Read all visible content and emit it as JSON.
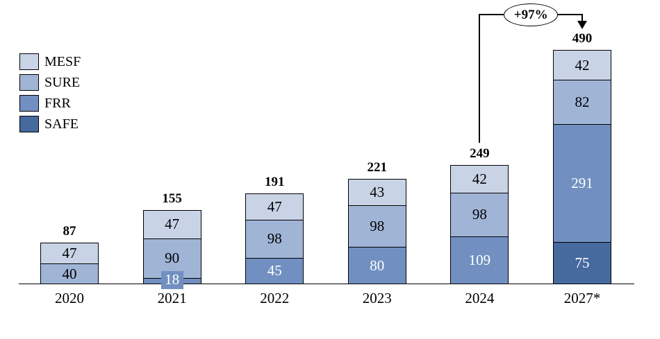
{
  "chart_data": {
    "type": "bar",
    "stacked": true,
    "title": "",
    "xlabel": "",
    "ylabel": "",
    "grid": false,
    "legend_position": "top-left",
    "categories": [
      "2020",
      "2021",
      "2022",
      "2023",
      "2024",
      "2027*"
    ],
    "series": [
      {
        "name": "MESF",
        "color": "#c9d3e6",
        "label_color": "#000000",
        "values": [
          47,
          47,
          47,
          43,
          42,
          42
        ]
      },
      {
        "name": "SURE",
        "color": "#a0b4d6",
        "label_color": "#000000",
        "values": [
          40,
          90,
          98,
          98,
          98,
          82
        ]
      },
      {
        "name": "FRR",
        "color": "#7190c1",
        "label_color": "#ffffff",
        "values": [
          null,
          18,
          45,
          80,
          109,
          291
        ]
      },
      {
        "name": "SAFE",
        "color": "#46699e",
        "label_color": "#ffffff",
        "values": [
          null,
          null,
          null,
          null,
          null,
          75
        ]
      }
    ],
    "totals": [
      87,
      155,
      191,
      221,
      249,
      490
    ],
    "annotation": {
      "label": "+97%",
      "from_category": "2024",
      "to_category": "2027*"
    }
  },
  "legend": {
    "items": [
      "MESF",
      "SURE",
      "FRR",
      "SAFE"
    ]
  }
}
